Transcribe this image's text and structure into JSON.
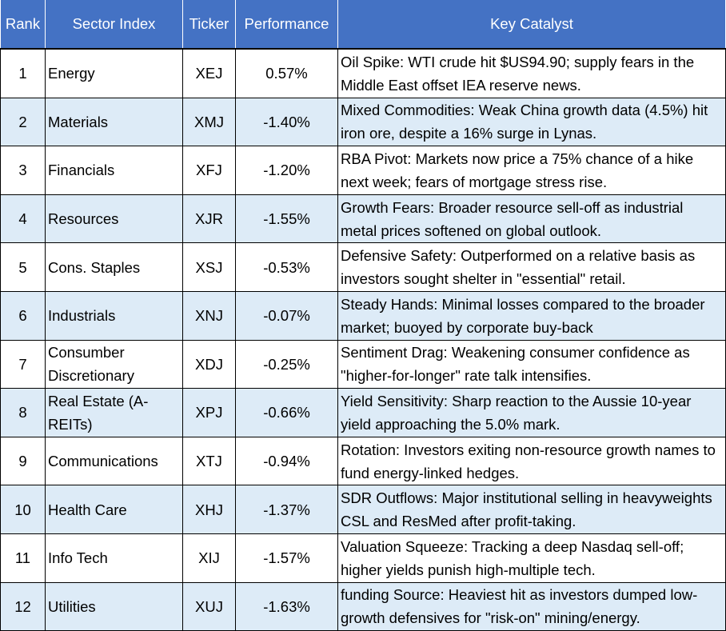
{
  "headers": [
    "Rank",
    "Sector Index",
    "Ticker",
    "Performance",
    "Key Catalyst"
  ],
  "rows": [
    {
      "rank": "1",
      "sector": "Energy",
      "ticker": "XEJ",
      "performance": "0.57%",
      "catalyst": "Oil Spike: WTI crude hit $US94.90; supply fears in the Middle East offset IEA reserve news."
    },
    {
      "rank": "2",
      "sector": "Materials",
      "ticker": "XMJ",
      "performance": "-1.40%",
      "catalyst": "Mixed Commodities: Weak China growth data (4.5%) hit iron ore, despite a 16% surge in Lynas."
    },
    {
      "rank": "3",
      "sector": "Financials",
      "ticker": "XFJ",
      "performance": "-1.20%",
      "catalyst": "RBA Pivot: Markets now price a 75% chance of a hike next week; fears of mortgage stress rise."
    },
    {
      "rank": "4",
      "sector": "Resources",
      "ticker": "XJR",
      "performance": "-1.55%",
      "catalyst": "Growth Fears: Broader resource sell-off as industrial metal prices softened on global outlook."
    },
    {
      "rank": "5",
      "sector": "Cons. Staples",
      "ticker": "XSJ",
      "performance": "-0.53%",
      "catalyst": "Defensive Safety: Outperformed on a relative basis as investors sought shelter in \"essential\" retail."
    },
    {
      "rank": "6",
      "sector": "Industrials",
      "ticker": "XNJ",
      "performance": "-0.07%",
      "catalyst": "Steady Hands: Minimal losses compared to the broader market; buoyed by corporate buy-back"
    },
    {
      "rank": "7",
      "sector": "Consumber Discretionary",
      "ticker": "XDJ",
      "performance": "-0.25%",
      "catalyst": "Sentiment Drag: Weakening consumer confidence as \"higher-for-longer\" rate talk intensifies."
    },
    {
      "rank": "8",
      "sector": "Real Estate (A-REITs)",
      "ticker": "XPJ",
      "performance": "-0.66%",
      "catalyst": "Yield Sensitivity: Sharp reaction to the Aussie 10-year yield approaching the 5.0% mark."
    },
    {
      "rank": "9",
      "sector": "Communications",
      "ticker": "XTJ",
      "performance": "-0.94%",
      "catalyst": "Rotation: Investors exiting non-resource growth names to fund energy-linked hedges."
    },
    {
      "rank": "10",
      "sector": "Health Care",
      "ticker": "XHJ",
      "performance": "-1.37%",
      "catalyst": "SDR Outflows: Major institutional selling in heavyweights CSL and ResMed after profit-taking."
    },
    {
      "rank": "11",
      "sector": "Info Tech",
      "ticker": "XIJ",
      "performance": "-1.57%",
      "catalyst": "Valuation Squeeze: Tracking a deep Nasdaq sell-off; higher yields punish high-multiple tech."
    },
    {
      "rank": "12",
      "sector": "Utilities",
      "ticker": "XUJ",
      "performance": "-1.63%",
      "catalyst": "funding Source: Heaviest hit as investors dumped low-growth defensives for \"risk-on\" mining/energy."
    }
  ],
  "colors": {
    "header_bg": "#4472c4",
    "header_text": "#ffffff",
    "alt_row": "#ddebf7",
    "row": "#ffffff"
  }
}
